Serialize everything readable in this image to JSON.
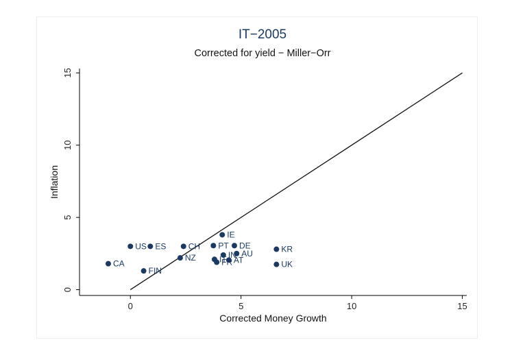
{
  "chart_data": {
    "type": "scatter",
    "title": "IT−2005",
    "subtitle": "Corrected for yield − Miller−Orr",
    "xlabel": "Corrected Money Growth",
    "ylabel": "Inflation",
    "xlim": [
      -2.3,
      15.2
    ],
    "ylim": [
      -0.4,
      15.3
    ],
    "xticks": [
      "0",
      "5",
      "10",
      "15"
    ],
    "yticks": [
      "0",
      "5",
      "10",
      "15"
    ],
    "reference_line": {
      "x": [
        0,
        15
      ],
      "y": [
        0,
        15
      ]
    },
    "grid": false,
    "legend": "none",
    "marker_color": "#1a3a64",
    "points": [
      {
        "label": "US",
        "x": 0.0,
        "y": 3.0
      },
      {
        "label": "ES",
        "x": 0.9,
        "y": 3.0
      },
      {
        "label": "CA",
        "x": -1.0,
        "y": 1.8
      },
      {
        "label": "FIN",
        "x": 0.6,
        "y": 1.3
      },
      {
        "label": "CH",
        "x": 2.4,
        "y": 3.0
      },
      {
        "label": "NZ",
        "x": 2.25,
        "y": 2.2
      },
      {
        "label": "IE",
        "x": 4.15,
        "y": 3.8
      },
      {
        "label": "PT",
        "x": 3.75,
        "y": 3.05
      },
      {
        "label": "DE",
        "x": 4.7,
        "y": 3.05
      },
      {
        "label": "AU",
        "x": 4.8,
        "y": 2.5
      },
      {
        "label": "IN",
        "x": 4.2,
        "y": 2.4
      },
      {
        "label": "IT",
        "x": 3.8,
        "y": 2.1
      },
      {
        "label": "AT",
        "x": 4.45,
        "y": 2.05
      },
      {
        "label": "FR",
        "x": 3.9,
        "y": 1.9
      },
      {
        "label": "KR",
        "x": 6.6,
        "y": 2.8
      },
      {
        "label": "UK",
        "x": 6.6,
        "y": 1.75
      }
    ]
  }
}
